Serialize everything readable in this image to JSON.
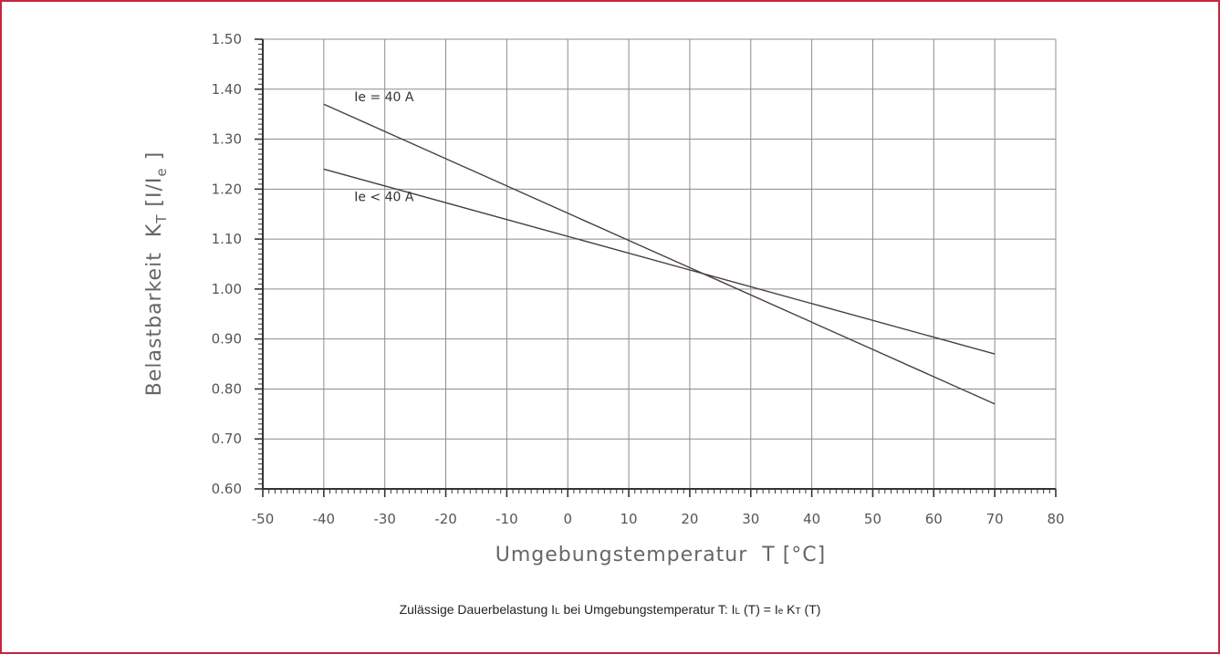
{
  "chart_data": {
    "type": "line",
    "xlabel": "Umgebungstemperatur  T [°C]",
    "ylabel": "Belastbarkeit  K",
    "ylabel_sub": "T",
    "ylabel_unit_pre": " [I/I",
    "ylabel_unit_sub": "e",
    "ylabel_unit_post": " ]",
    "xlim": [
      -50,
      80
    ],
    "ylim": [
      0.6,
      1.5
    ],
    "x_ticks": [
      -50,
      -40,
      -30,
      -20,
      -10,
      0,
      10,
      20,
      30,
      40,
      50,
      60,
      70,
      80
    ],
    "x_tick_labels": [
      "-50",
      "-40",
      "-30",
      "-20",
      "-10",
      "0",
      "10",
      "20",
      "30",
      "40",
      "50",
      "60",
      "70",
      "80"
    ],
    "y_ticks": [
      0.6,
      0.7,
      0.8,
      0.9,
      1.0,
      1.1,
      1.2,
      1.3,
      1.4,
      1.5
    ],
    "y_tick_labels": [
      "0.60",
      "0.70",
      "0.80",
      "0.90",
      "1.00",
      "1.10",
      "1.20",
      "1.30",
      "1.40",
      "1.50"
    ],
    "grid": true,
    "series": [
      {
        "name": "Ie = 40 A",
        "x": [
          -40,
          70
        ],
        "y": [
          1.37,
          0.77
        ]
      },
      {
        "name": "Ie < 40 A",
        "x": [
          -40,
          70
        ],
        "y": [
          1.24,
          0.87
        ]
      }
    ],
    "label_anchors": [
      {
        "x": -35,
        "y": 1.385
      },
      {
        "x": -35,
        "y": 1.185
      }
    ]
  },
  "caption": {
    "p1": "Zulässige Dauerbelastung I",
    "s1": "L",
    "p2": " bei Umgebungstemperatur T: I",
    "s2": "L",
    "p3": " (T) = I",
    "s3": "e",
    "p4": " K",
    "s4": "T",
    "p5": " (T)"
  },
  "colors": {
    "frame": "#c5283d",
    "lines": "#4a3f3f",
    "grid": "#8c8c8c"
  }
}
